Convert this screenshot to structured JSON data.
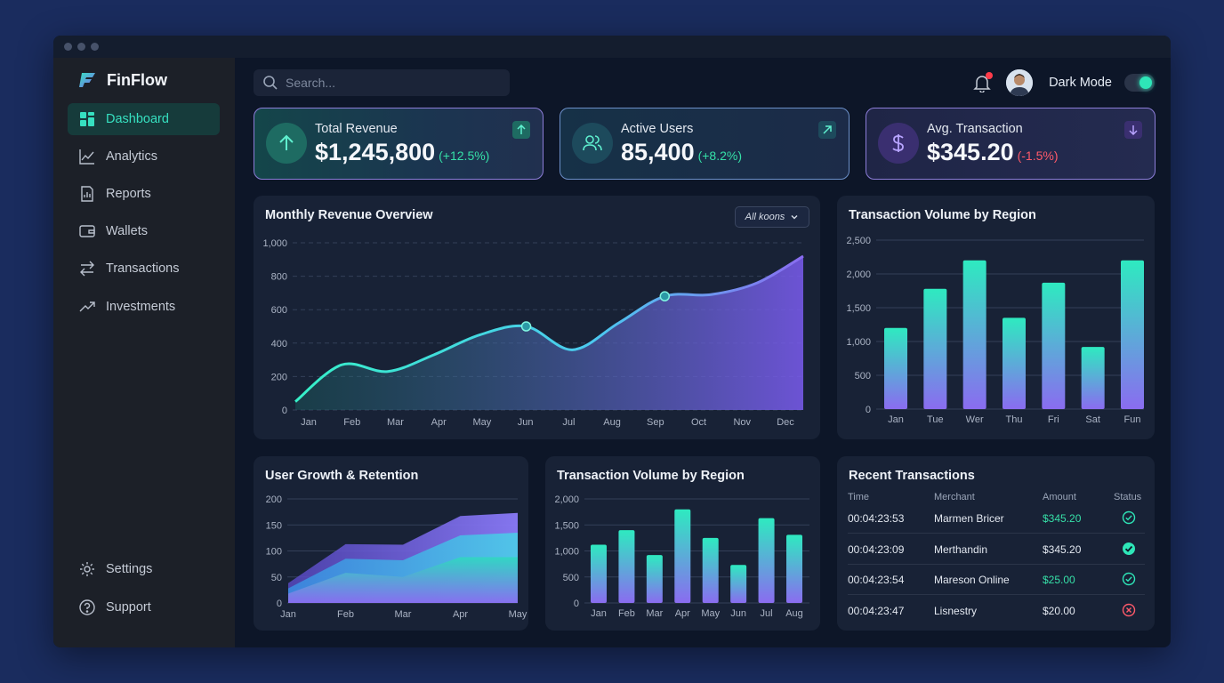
{
  "app": {
    "name": "FinFlow"
  },
  "sidebar": {
    "items": [
      {
        "label": "Dashboard",
        "icon": "dashboard-icon",
        "active": true
      },
      {
        "label": "Analytics",
        "icon": "analytics-icon"
      },
      {
        "label": "Reports",
        "icon": "reports-icon"
      },
      {
        "label": "Wallets",
        "icon": "wallet-icon"
      },
      {
        "label": "Transactions",
        "icon": "transactions-icon"
      },
      {
        "label": "Investments",
        "icon": "investments-icon"
      }
    ],
    "bottom": [
      {
        "label": "Settings",
        "icon": "gear-icon"
      },
      {
        "label": "Support",
        "icon": "help-icon"
      }
    ]
  },
  "header": {
    "search_placeholder": "Search...",
    "dark_mode_label": "Dark Mode",
    "dark_mode_on": true
  },
  "kpis": [
    {
      "label": "Total Revenue",
      "value": "$1,245,800",
      "delta": "(+12.5%)",
      "trend": "up",
      "delta_color": "#36e0a8"
    },
    {
      "label": "Active Users",
      "value": "85,400",
      "delta": "(+8.2%)",
      "trend": "up",
      "delta_color": "#36e0a8"
    },
    {
      "label": "Avg. Transaction",
      "value": "$345.20",
      "delta": "(-1.5%)",
      "trend": "down",
      "delta_color": "#ff5a6a"
    }
  ],
  "colors": {
    "accent": "#2ee6b8",
    "purple": "#8a6cf0",
    "negative": "#ff5a6a"
  },
  "revenue_chart": {
    "title": "Monthly Revenue Overview",
    "filter": "All koons",
    "chart_data": {
      "type": "area",
      "categories": [
        "Jan",
        "Feb",
        "Mar",
        "Apr",
        "May",
        "Jun",
        "Jul",
        "Aug",
        "Sep",
        "Oct",
        "Nov",
        "Dec"
      ],
      "values": [
        50,
        270,
        230,
        330,
        450,
        500,
        360,
        520,
        680,
        690,
        760,
        920
      ],
      "markers": [
        5,
        8
      ],
      "yticks": [
        0,
        200,
        400,
        600,
        800,
        1000
      ],
      "ytick_labels": [
        "0",
        "200",
        "400",
        "600",
        "800",
        "1,000"
      ],
      "ylim": [
        0,
        1000
      ]
    }
  },
  "region_chart_1": {
    "title": "Transaction Volume by Region",
    "chart_data": {
      "type": "bar",
      "categories": [
        "Jan",
        "Tue",
        "Wer",
        "Thu",
        "Fri",
        "Sat",
        "Fun"
      ],
      "values": [
        1200,
        1780,
        2200,
        1350,
        1870,
        920,
        2200
      ],
      "yticks": [
        0,
        500,
        1000,
        1500,
        2000,
        2500
      ],
      "ytick_labels": [
        "0",
        "500",
        "1,000",
        "1,500",
        "2,000",
        "2,500"
      ],
      "ylim": [
        0,
        2500
      ]
    }
  },
  "growth_chart": {
    "title": "User Growth & Retention",
    "chart_data": {
      "type": "area",
      "x_labels": [
        "Jan",
        "Feb",
        "Mar",
        "Apr",
        "May"
      ],
      "series": [
        {
          "values": [
            38,
            113,
            112,
            167,
            173
          ]
        },
        {
          "values": [
            28,
            85,
            82,
            130,
            135
          ]
        },
        {
          "values": [
            18,
            58,
            50,
            88,
            88
          ]
        }
      ],
      "yticks": [
        0,
        50,
        100,
        150,
        200
      ],
      "ylim": [
        0,
        200
      ]
    }
  },
  "region_chart_2": {
    "title": "Transaction Volume by Region",
    "chart_data": {
      "type": "bar",
      "categories": [
        "Jan",
        "Feb",
        "Mar",
        "Apr",
        "May",
        "Jun",
        "Jul",
        "Aug"
      ],
      "values": [
        1120,
        1400,
        920,
        1800,
        1250,
        730,
        1630,
        1310
      ],
      "yticks": [
        0,
        500,
        1000,
        1500,
        2000
      ],
      "ytick_labels": [
        "0",
        "500",
        "1,000",
        "1,500",
        "2,000"
      ],
      "ylim": [
        0,
        2000
      ]
    }
  },
  "transactions": {
    "title": "Recent Transactions",
    "headers": {
      "time": "Time",
      "merchant": "Merchant",
      "amount": "Amount",
      "status": "Status"
    },
    "rows": [
      {
        "time": "00:04:23:53",
        "merchant": "Marmen Bricer",
        "amount": "$345.20",
        "amount_color": "#36e0a8",
        "status": "success-outline"
      },
      {
        "time": "00:04:23:09",
        "merchant": "Merthandin",
        "amount": "$345.20",
        "amount_color": "#e3e8f0",
        "status": "success-filled"
      },
      {
        "time": "00:04:23:54",
        "merchant": "Mareson Online",
        "amount": "$25.00",
        "amount_color": "#36e0a8",
        "status": "success-outline"
      },
      {
        "time": "00:04:23:47",
        "merchant": "Lisnestry",
        "amount": "$20.00",
        "amount_color": "#e3e8f0",
        "status": "failed"
      }
    ]
  }
}
